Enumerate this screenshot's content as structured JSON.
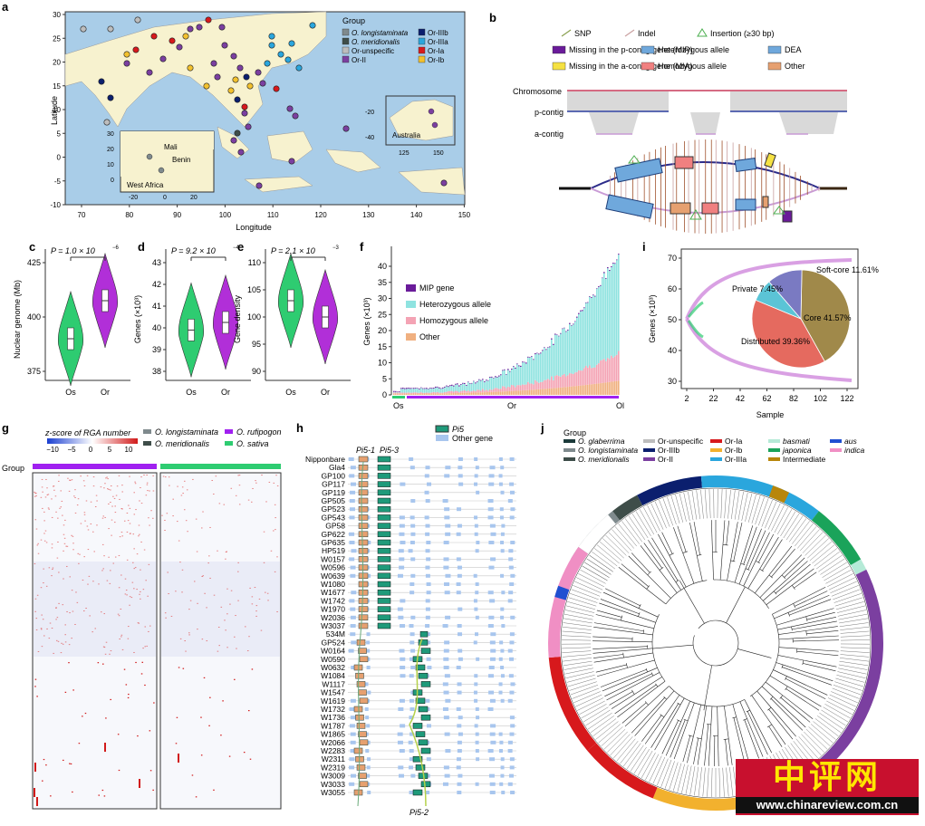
{
  "panels": {
    "a": {
      "letter": "a",
      "legend_title": "Group",
      "legend": [
        {
          "label": "O. longistaminata",
          "color": "#7f8a8d"
        },
        {
          "label": "O. meridionalis",
          "color": "#3e4d49"
        },
        {
          "label": "Or-unspecific",
          "color": "#bdbdbd"
        },
        {
          "label": "Or-II",
          "color": "#7b3fa0"
        },
        {
          "label": "Or-IIIb",
          "color": "#0b1f6e"
        },
        {
          "label": "Or-IIIa",
          "color": "#2aa6dd"
        },
        {
          "label": "Or-Ia",
          "color": "#d7191c"
        },
        {
          "label": "Or-Ib",
          "color": "#f2c12e"
        }
      ],
      "xlabel": "Longitude",
      "ylabel": "Latitude",
      "xticks": [
        "70",
        "80",
        "90",
        "100",
        "110",
        "120",
        "130",
        "140",
        "150"
      ],
      "yticks": [
        "30",
        "25",
        "20",
        "15",
        "10",
        "5",
        "0",
        "-5",
        "-10"
      ],
      "inset_africa": {
        "places": [
          "Mali",
          "Benin"
        ],
        "region": "West Africa",
        "xticks": [
          "-20",
          "0",
          "20"
        ],
        "yticks": [
          "30",
          "20",
          "10",
          "0"
        ]
      },
      "inset_australia": {
        "label": "Australia",
        "xticks": [
          "125",
          "150"
        ],
        "yticks": [
          "-20",
          "-40"
        ]
      }
    },
    "b": {
      "letter": "b",
      "legend": [
        {
          "label": "SNP",
          "color": "#8aa04f"
        },
        {
          "label": "Indel",
          "color": "#c9a0a0"
        },
        {
          "label": "Insertion (≥30 bp)",
          "color": "#4caf50"
        },
        {
          "label": "Missing in the p-contig gene (MIP)",
          "color": "#6a1b9a"
        },
        {
          "label": "Heterozygous allele",
          "color": "#6fa8dc"
        },
        {
          "label": "DEA",
          "color": "#6fa8dc"
        },
        {
          "label": "Missing in the a-contig gene (MIA)",
          "color": "#f5e142"
        },
        {
          "label": "Homozygous allele",
          "color": "#f08080"
        },
        {
          "label": "Other",
          "color": "#e6a070"
        }
      ],
      "tracks": [
        "Chromosome",
        "p-contig",
        "a-contig"
      ]
    },
    "c": {
      "letter": "c",
      "pvalue": "P = 1.0 × 10",
      "exp": "−6",
      "ylabel": "Nuclear genome (Mb)",
      "yticks": [
        "425",
        "400",
        "375"
      ],
      "groups": [
        "Os",
        "Or"
      ]
    },
    "d": {
      "letter": "d",
      "pvalue": "P = 9.2 × 10",
      "exp": "−4",
      "ylabel": "Genes (×10³)",
      "yticks": [
        "43",
        "42",
        "41",
        "40",
        "39",
        "38"
      ],
      "groups": [
        "Os",
        "Or"
      ]
    },
    "e": {
      "letter": "e",
      "pvalue": "P = 2.1 × 10",
      "exp": "−3",
      "ylabel": "Gene density",
      "yticks": [
        "110",
        "105",
        "100",
        "95",
        "90"
      ],
      "groups": [
        "Os",
        "Or"
      ]
    },
    "f": {
      "letter": "f",
      "ylabel": "Genes (×10³)",
      "yticks": [
        "40",
        "35",
        "30",
        "25",
        "20",
        "15",
        "10",
        "5",
        "0"
      ],
      "legend": [
        {
          "label": "MIP gene",
          "color": "#6a1b9a"
        },
        {
          "label": "Heterozygous allele",
          "color": "#8fe3e0"
        },
        {
          "label": "Homozygous allele",
          "color": "#f4a3b4"
        },
        {
          "label": "Other",
          "color": "#f0b080"
        }
      ],
      "groups": [
        "Os",
        "Or",
        "Ol"
      ]
    },
    "i": {
      "letter": "i",
      "ylabel": "Genes (×10³)",
      "xlabel": "Sample",
      "yticks": [
        "70",
        "60",
        "50",
        "40",
        "30"
      ],
      "xticks": [
        "2",
        "22",
        "42",
        "62",
        "82",
        "102",
        "122"
      ]
    },
    "g": {
      "letter": "g",
      "scale_title": "z-score of RGA number",
      "scale_ticks": [
        "−10",
        "−5",
        "0",
        "5",
        "10"
      ],
      "group_label": "Group",
      "legend": [
        {
          "label": "O. longistaminata",
          "color": "#7f8a8d"
        },
        {
          "label": "O. rufipogon",
          "color": "#a020f0"
        },
        {
          "label": "O. meridionalis",
          "color": "#3e4d49"
        },
        {
          "label": "O. sativa",
          "color": "#2ecc71"
        }
      ]
    },
    "h": {
      "letter": "h",
      "legend": [
        {
          "label": "Pi5",
          "color": "#1f9a7a"
        },
        {
          "label": "Other gene",
          "color": "#a8c6ee"
        }
      ],
      "top_labels": [
        "Pi5-1",
        "Pi5-3"
      ],
      "bottom_label": "Pi5-2",
      "samples": [
        "Nipponbare",
        "Gla4",
        "GP100",
        "GP117",
        "GP119",
        "GP505",
        "GP523",
        "GP543",
        "GP58",
        "GP622",
        "GP635",
        "HP519",
        "W0157",
        "W0596",
        "W0639",
        "W1080",
        "W1677",
        "W1742",
        "W1970",
        "W2036",
        "W3037",
        "534M",
        "GP524",
        "W0164",
        "W0590",
        "W0632",
        "W1084",
        "W1117",
        "W1547",
        "W1619",
        "W1732",
        "W1736",
        "W1787",
        "W1865",
        "W2066",
        "W2283",
        "W2311",
        "W2319",
        "W3009",
        "W3033",
        "W3055"
      ]
    },
    "j": {
      "letter": "j",
      "legend_title": "Group",
      "legend": [
        {
          "label": "O. glaberrima",
          "color": "#1b3a3a"
        },
        {
          "label": "O. longistaminata",
          "color": "#7f8a8d"
        },
        {
          "label": "O. meridionalis",
          "color": "#3e4d49"
        },
        {
          "label": "Or-unspecific",
          "color": "#bdbdbd"
        },
        {
          "label": "Or-IIIb",
          "color": "#0b1f6e"
        },
        {
          "label": "Or-II",
          "color": "#7b3fa0"
        },
        {
          "label": "Or-Ia",
          "color": "#d7191c"
        },
        {
          "label": "Or-Ib",
          "color": "#f2b12e"
        },
        {
          "label": "Or-IIIa",
          "color": "#2aa6dd"
        },
        {
          "label": "basmati",
          "color": "#b5ead7"
        },
        {
          "label": "japonica",
          "color": "#1aa35a"
        },
        {
          "label": "Intermediate",
          "color": "#b8860b"
        },
        {
          "label": "aus",
          "color": "#1f4fd1"
        },
        {
          "label": "indica",
          "color": "#f08fc4"
        }
      ]
    }
  },
  "watermark": {
    "big": "中评网",
    "small": "www.chinareview.com.cn"
  },
  "chart_data": [
    {
      "type": "violin",
      "panel": "c",
      "categories": [
        "Os",
        "Or"
      ],
      "medians": [
        388,
        408
      ],
      "ylim": [
        360,
        440
      ],
      "ylabel": "Nuclear genome (Mb)",
      "annotation": "P = 1.0 × 10−6"
    },
    {
      "type": "violin",
      "panel": "d",
      "categories": [
        "Os",
        "Or"
      ],
      "medians": [
        39.6,
        40.1
      ],
      "ylim": [
        37.5,
        43
      ],
      "ylabel": "Genes (×10³)",
      "annotation": "P = 9.2 × 10−4"
    },
    {
      "type": "violin",
      "panel": "e",
      "categories": [
        "Os",
        "Or"
      ],
      "medians": [
        101.5,
        98
      ],
      "ylim": [
        87,
        112
      ],
      "ylabel": "Gene density",
      "annotation": "P = 2.1 × 10−3"
    },
    {
      "type": "pie",
      "panel": "i",
      "slices": [
        {
          "name": "Core",
          "value": 41.57,
          "color": "#a0894a"
        },
        {
          "name": "Distributed",
          "value": 39.36,
          "color": "#e56a5f"
        },
        {
          "name": "Private",
          "value": 7.45,
          "color": "#5bc4d6"
        },
        {
          "name": "Soft-core",
          "value": 11.61,
          "color": "#7a7ac2"
        }
      ],
      "labels": [
        "Soft-core 11.61%",
        "Private 7.45%",
        "Core 41.57%",
        "Distributed 39.36%"
      ]
    }
  ]
}
